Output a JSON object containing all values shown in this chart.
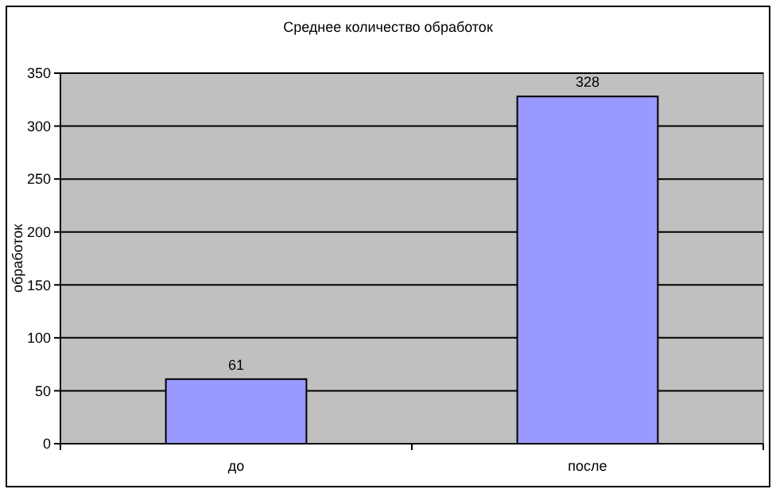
{
  "chart_data": {
    "type": "bar",
    "title": "Среднее количество обработок",
    "ylabel": "обработок",
    "categories": [
      "до",
      "после"
    ],
    "values": [
      61,
      328
    ],
    "color": "#9999ff",
    "ylim": [
      0,
      350
    ],
    "yticks": [
      0,
      50,
      100,
      150,
      200,
      250,
      300,
      350
    ],
    "grid": "y",
    "data_labels": true
  }
}
